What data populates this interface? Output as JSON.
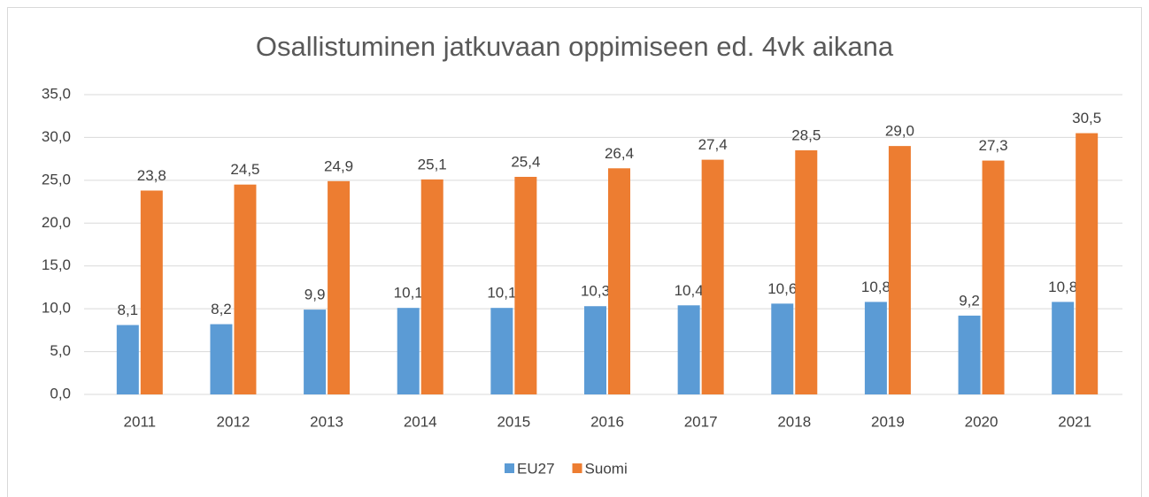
{
  "chart_data": {
    "type": "bar",
    "title": "Osallistuminen jatkuvaan oppimiseen ed. 4vk aikana",
    "categories": [
      "2011",
      "2012",
      "2013",
      "2014",
      "2015",
      "2016",
      "2017",
      "2018",
      "2019",
      "2020",
      "2021"
    ],
    "series": [
      {
        "name": "EU27",
        "color": "#5b9bd5",
        "values": [
          8.1,
          8.2,
          9.9,
          10.1,
          10.1,
          10.3,
          10.4,
          10.6,
          10.8,
          9.2,
          10.8
        ],
        "value_labels": [
          "8,1",
          "8,2",
          "9,9",
          "10,1",
          "10,1",
          "10,3",
          "10,4",
          "10,6",
          "10,8",
          "9,2",
          "10,8"
        ]
      },
      {
        "name": "Suomi",
        "color": "#ed7d31",
        "values": [
          23.8,
          24.5,
          24.9,
          25.1,
          25.4,
          26.4,
          27.4,
          28.5,
          29.0,
          27.3,
          30.5
        ],
        "value_labels": [
          "23,8",
          "24,5",
          "24,9",
          "25,1",
          "25,4",
          "26,4",
          "27,4",
          "28,5",
          "29,0",
          "27,3",
          "30,5"
        ]
      }
    ],
    "ylim": [
      0,
      35
    ],
    "yticks": [
      {
        "value": 0,
        "label": "0,0"
      },
      {
        "value": 5,
        "label": "5,0"
      },
      {
        "value": 10,
        "label": "10,0"
      },
      {
        "value": 15,
        "label": "15,0"
      },
      {
        "value": 20,
        "label": "20,0"
      },
      {
        "value": 25,
        "label": "25,0"
      },
      {
        "value": 30,
        "label": "30,0"
      },
      {
        "value": 35,
        "label": "35,0"
      }
    ],
    "grid": true,
    "legend": "bottom"
  }
}
